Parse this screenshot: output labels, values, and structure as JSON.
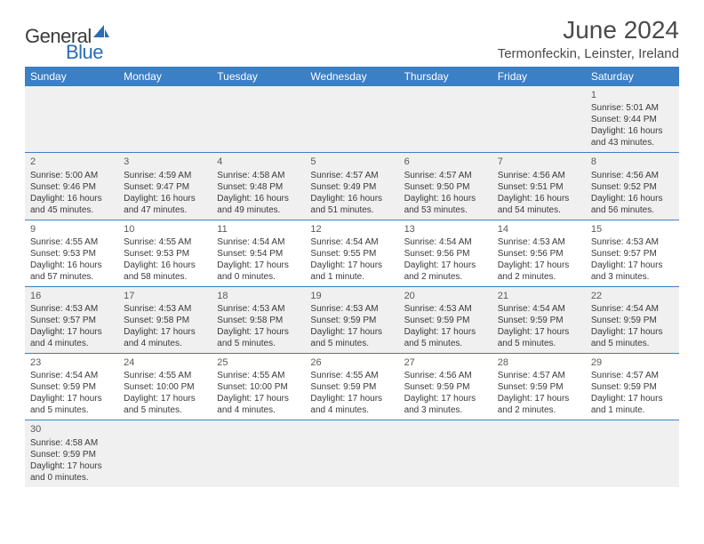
{
  "logo": {
    "general": "General",
    "blue": "Blue"
  },
  "title": "June 2024",
  "subtitle": "Termonfeckin, Leinster, Ireland",
  "colors": {
    "header_bg": "#3b7fc4",
    "header_text": "#ffffff",
    "row_alt_bg": "#f0f0f0",
    "text": "#3a3a3a",
    "logo_blue": "#2a6db5"
  },
  "weekdays": [
    "Sunday",
    "Monday",
    "Tuesday",
    "Wednesday",
    "Thursday",
    "Friday",
    "Saturday"
  ],
  "weeks": [
    [
      null,
      null,
      null,
      null,
      null,
      null,
      {
        "n": "1",
        "sr": "5:01 AM",
        "ss": "9:44 PM",
        "dl": "16 hours and 43 minutes."
      }
    ],
    [
      {
        "n": "2",
        "sr": "5:00 AM",
        "ss": "9:46 PM",
        "dl": "16 hours and 45 minutes."
      },
      {
        "n": "3",
        "sr": "4:59 AM",
        "ss": "9:47 PM",
        "dl": "16 hours and 47 minutes."
      },
      {
        "n": "4",
        "sr": "4:58 AM",
        "ss": "9:48 PM",
        "dl": "16 hours and 49 minutes."
      },
      {
        "n": "5",
        "sr": "4:57 AM",
        "ss": "9:49 PM",
        "dl": "16 hours and 51 minutes."
      },
      {
        "n": "6",
        "sr": "4:57 AM",
        "ss": "9:50 PM",
        "dl": "16 hours and 53 minutes."
      },
      {
        "n": "7",
        "sr": "4:56 AM",
        "ss": "9:51 PM",
        "dl": "16 hours and 54 minutes."
      },
      {
        "n": "8",
        "sr": "4:56 AM",
        "ss": "9:52 PM",
        "dl": "16 hours and 56 minutes."
      }
    ],
    [
      {
        "n": "9",
        "sr": "4:55 AM",
        "ss": "9:53 PM",
        "dl": "16 hours and 57 minutes."
      },
      {
        "n": "10",
        "sr": "4:55 AM",
        "ss": "9:53 PM",
        "dl": "16 hours and 58 minutes."
      },
      {
        "n": "11",
        "sr": "4:54 AM",
        "ss": "9:54 PM",
        "dl": "17 hours and 0 minutes."
      },
      {
        "n": "12",
        "sr": "4:54 AM",
        "ss": "9:55 PM",
        "dl": "17 hours and 1 minute."
      },
      {
        "n": "13",
        "sr": "4:54 AM",
        "ss": "9:56 PM",
        "dl": "17 hours and 2 minutes."
      },
      {
        "n": "14",
        "sr": "4:53 AM",
        "ss": "9:56 PM",
        "dl": "17 hours and 2 minutes."
      },
      {
        "n": "15",
        "sr": "4:53 AM",
        "ss": "9:57 PM",
        "dl": "17 hours and 3 minutes."
      }
    ],
    [
      {
        "n": "16",
        "sr": "4:53 AM",
        "ss": "9:57 PM",
        "dl": "17 hours and 4 minutes."
      },
      {
        "n": "17",
        "sr": "4:53 AM",
        "ss": "9:58 PM",
        "dl": "17 hours and 4 minutes."
      },
      {
        "n": "18",
        "sr": "4:53 AM",
        "ss": "9:58 PM",
        "dl": "17 hours and 5 minutes."
      },
      {
        "n": "19",
        "sr": "4:53 AM",
        "ss": "9:59 PM",
        "dl": "17 hours and 5 minutes."
      },
      {
        "n": "20",
        "sr": "4:53 AM",
        "ss": "9:59 PM",
        "dl": "17 hours and 5 minutes."
      },
      {
        "n": "21",
        "sr": "4:54 AM",
        "ss": "9:59 PM",
        "dl": "17 hours and 5 minutes."
      },
      {
        "n": "22",
        "sr": "4:54 AM",
        "ss": "9:59 PM",
        "dl": "17 hours and 5 minutes."
      }
    ],
    [
      {
        "n": "23",
        "sr": "4:54 AM",
        "ss": "9:59 PM",
        "dl": "17 hours and 5 minutes."
      },
      {
        "n": "24",
        "sr": "4:55 AM",
        "ss": "10:00 PM",
        "dl": "17 hours and 5 minutes."
      },
      {
        "n": "25",
        "sr": "4:55 AM",
        "ss": "10:00 PM",
        "dl": "17 hours and 4 minutes."
      },
      {
        "n": "26",
        "sr": "4:55 AM",
        "ss": "9:59 PM",
        "dl": "17 hours and 4 minutes."
      },
      {
        "n": "27",
        "sr": "4:56 AM",
        "ss": "9:59 PM",
        "dl": "17 hours and 3 minutes."
      },
      {
        "n": "28",
        "sr": "4:57 AM",
        "ss": "9:59 PM",
        "dl": "17 hours and 2 minutes."
      },
      {
        "n": "29",
        "sr": "4:57 AM",
        "ss": "9:59 PM",
        "dl": "17 hours and 1 minute."
      }
    ],
    [
      {
        "n": "30",
        "sr": "4:58 AM",
        "ss": "9:59 PM",
        "dl": "17 hours and 0 minutes."
      },
      null,
      null,
      null,
      null,
      null,
      null
    ]
  ],
  "labels": {
    "sunrise": "Sunrise:",
    "sunset": "Sunset:",
    "daylight": "Daylight:"
  }
}
